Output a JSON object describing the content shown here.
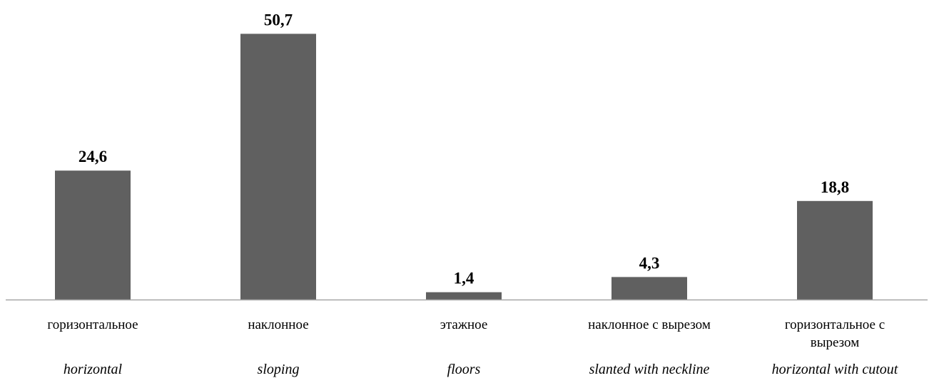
{
  "chart_data": {
    "type": "bar",
    "categories": [
      "горизонтальное",
      "наклонное",
      "этажное",
      "наклонное с вырезом",
      "горизонтальное с вырезом"
    ],
    "categories_en": [
      "horizontal",
      "sloping",
      "floors",
      "slanted with neckline",
      "horizontal with cutout"
    ],
    "values": [
      24.6,
      50.7,
      1.4,
      4.3,
      18.8
    ],
    "data_labels": [
      "24,6",
      "50,7",
      "1,4",
      "4,3",
      "18,8"
    ],
    "title": "",
    "xlabel": "",
    "ylabel": "",
    "ylim": [
      0,
      55
    ],
    "grid": false,
    "legend": "none",
    "bar_color": "#606060",
    "axis_color": "#a6a6a6"
  }
}
